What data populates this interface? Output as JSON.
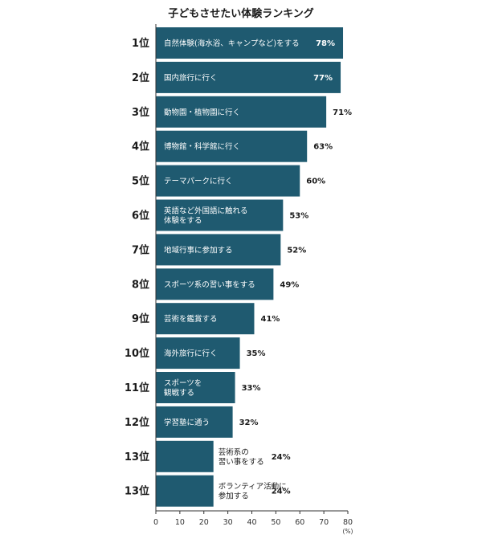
{
  "chart_data": {
    "type": "bar",
    "orientation": "horizontal",
    "title": "子どもさせたい体験ランキング",
    "unit_label": "(%)",
    "xlim": [
      0,
      80
    ],
    "xticks": [
      0,
      10,
      20,
      30,
      40,
      50,
      60,
      70,
      80
    ],
    "bar_color": "#1f5a70",
    "items": [
      {
        "rank": "1位",
        "lines": [
          "自然体験(海水浴、キャンプなど)をする"
        ],
        "value": 78,
        "value_label": "78%"
      },
      {
        "rank": "2位",
        "lines": [
          "国内旅行に行く"
        ],
        "value": 77,
        "value_label": "77%"
      },
      {
        "rank": "3位",
        "lines": [
          "動物園・植物園に行く"
        ],
        "value": 71,
        "value_label": "71%"
      },
      {
        "rank": "4位",
        "lines": [
          "博物館・科学館に行く"
        ],
        "value": 63,
        "value_label": "63%"
      },
      {
        "rank": "5位",
        "lines": [
          "テーマパークに行く"
        ],
        "value": 60,
        "value_label": "60%"
      },
      {
        "rank": "6位",
        "lines": [
          "英語など外国語に触れる",
          "体験をする"
        ],
        "value": 53,
        "value_label": "53%"
      },
      {
        "rank": "7位",
        "lines": [
          "地域行事に参加する"
        ],
        "value": 52,
        "value_label": "52%"
      },
      {
        "rank": "8位",
        "lines": [
          "スポーツ系の習い事をする"
        ],
        "value": 49,
        "value_label": "49%"
      },
      {
        "rank": "9位",
        "lines": [
          "芸術を鑑賞する"
        ],
        "value": 41,
        "value_label": "41%"
      },
      {
        "rank": "10位",
        "lines": [
          "海外旅行に行く"
        ],
        "value": 35,
        "value_label": "35%"
      },
      {
        "rank": "11位",
        "lines": [
          "スポーツを",
          "観戦する"
        ],
        "value": 33,
        "value_label": "33%"
      },
      {
        "rank": "12位",
        "lines": [
          "学習塾に通う"
        ],
        "value": 32,
        "value_label": "32%"
      },
      {
        "rank": "13位",
        "lines": [
          "芸術系の",
          "習い事をする"
        ],
        "value": 24,
        "value_label": "24%"
      },
      {
        "rank": "13位",
        "lines": [
          "ボランティア活動に",
          "参加する"
        ],
        "value": 24,
        "value_label": "24%"
      }
    ]
  }
}
